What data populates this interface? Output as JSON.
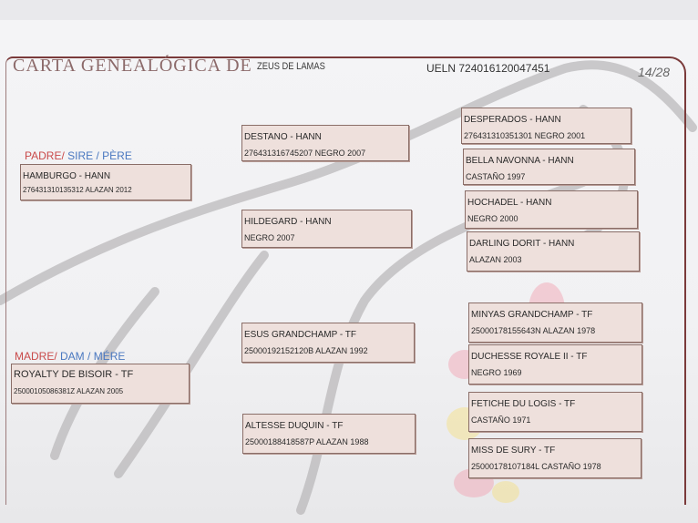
{
  "header": {
    "title": "CARTA GENEALÓGICA DE",
    "horse_name": "ZEUS DE LAMAS",
    "ueln_label": "UELN",
    "ueln": "724016120047451",
    "page": "14/28"
  },
  "sire_label": {
    "es": "PADRE/",
    "en": "SIRE /",
    "fr": "PÈRE"
  },
  "dam_label": {
    "es": "MADRE/",
    "en": "DAM /",
    "fr": "MÉRE"
  },
  "sire": {
    "name": "HAMBURGO - HANN",
    "info": "276431310135312 ALAZAN 2012"
  },
  "dam": {
    "name": "ROYALTY DE BISOIR - TF",
    "info": "25000105086381Z ALAZAN 2005"
  },
  "grandparents": [
    {
      "name": "DESTANO - HANN",
      "info": "276431316745207 NEGRO 2007"
    },
    {
      "name": "HILDEGARD - HANN",
      "info": "NEGRO 2007"
    },
    {
      "name": "ESUS GRANDCHAMP - TF",
      "info": "25000192152120B ALAZAN 1992"
    },
    {
      "name": "ALTESSE DUQUIN - TF",
      "info": "25000188418587P ALAZAN 1988"
    }
  ],
  "great_grandparents": [
    {
      "name": "DESPERADOS - HANN",
      "info": "276431310351301 NEGRO 2001"
    },
    {
      "name": "BELLA NAVONNA - HANN",
      "info": "CASTAÑO 1997"
    },
    {
      "name": "HOCHADEL - HANN",
      "info": "NEGRO 2000"
    },
    {
      "name": "DARLING DORIT - HANN",
      "info": "ALAZAN 2003"
    },
    {
      "name": "MINYAS GRANDCHAMP - TF",
      "info": "25000178155643N ALAZAN 1978"
    },
    {
      "name": "DUCHESSE ROYALE II - TF",
      "info": "NEGRO 1969"
    },
    {
      "name": "FETICHE DU LOGIS - TF",
      "info": "CASTAÑO 1971"
    },
    {
      "name": "MISS DE SURY - TF",
      "info": "25000178107184L CASTAÑO 1978"
    }
  ]
}
